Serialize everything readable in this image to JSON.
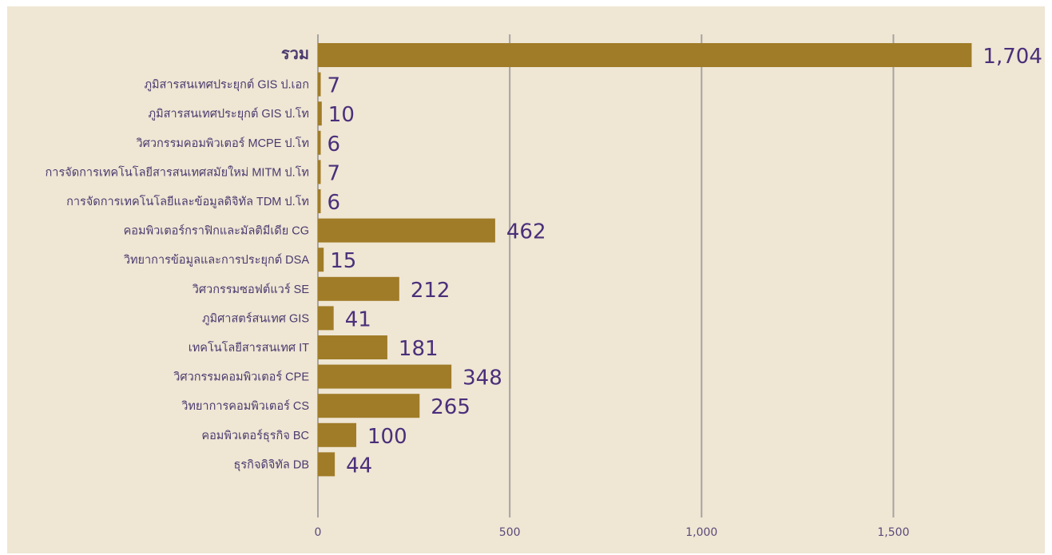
{
  "chart_data": {
    "type": "bar",
    "orientation": "horizontal",
    "categories": [
      "รวม",
      "ภูมิสารสนเทศประยุกต์ GIS ป.เอก",
      "ภูมิสารสนเทศประยุกต์ GIS ป.โท",
      "วิศวกรรมคอมพิวเตอร์ MCPE ป.โท",
      "การจัดการเทคโนโลยีสารสนเทศสมัยใหม่ MITM ป.โท",
      "การจัดการเทคโนโลยีและข้อมูลดิจิทัล TDM ป.โท",
      "คอมพิวเตอร์กราฟิกและมัลติมีเดีย CG",
      "วิทยาการข้อมูลและการประยุกต์ DSA",
      "วิศวกรรมซอฟต์แวร์ SE",
      "ภูมิศาสตร์สนเทศ GIS",
      "เทคโนโลยีสารสนเทศ IT",
      "วิศวกรรมคอมพิวเตอร์ CPE",
      "วิทยาการคอมพิวเตอร์ CS",
      "คอมพิวเตอร์ธุรกิจ BC",
      "ธุรกิจดิจิทัล DB"
    ],
    "values": [
      1704,
      7,
      10,
      6,
      7,
      6,
      462,
      15,
      212,
      41,
      181,
      348,
      265,
      100,
      44
    ],
    "value_labels": [
      "1,704",
      "7",
      "10",
      "6",
      "7",
      "6",
      "462",
      "15",
      "212",
      "41",
      "181",
      "348",
      "265",
      "100",
      "44"
    ],
    "xlim": [
      0,
      1800
    ],
    "x_ticks": [
      0,
      500,
      1000,
      1500
    ],
    "x_tick_labels": [
      "0",
      "500",
      "1,000",
      "1,500"
    ],
    "title": "",
    "xlabel": "",
    "ylabel": "",
    "grid": "vertical",
    "legend": "none",
    "colors": {
      "background": "#efe6d4",
      "bar": "#a07c28",
      "gridline": "#a7a3a0",
      "label_text": "#4a3a6e",
      "value_text": "#4a2f7a"
    }
  }
}
